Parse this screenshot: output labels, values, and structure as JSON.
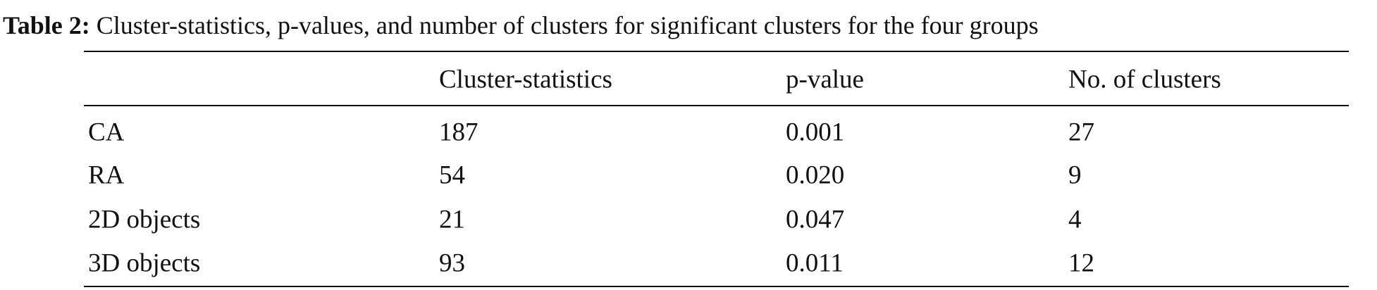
{
  "caption": {
    "label": "Table 2:",
    "text": "Cluster-statistics, p-values, and number of clusters for significant clusters for the four groups"
  },
  "table": {
    "header": [
      "",
      "Cluster-statistics",
      "p-value",
      "No. of clusters"
    ],
    "rows": [
      [
        "CA",
        "187",
        "0.001",
        "27"
      ],
      [
        "RA",
        "54",
        "0.020",
        "9"
      ],
      [
        "2D objects",
        "21",
        "0.047",
        "4"
      ],
      [
        "3D objects",
        "93",
        "0.011",
        "12"
      ]
    ]
  }
}
